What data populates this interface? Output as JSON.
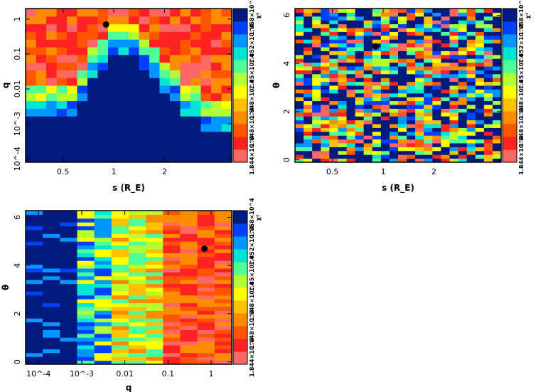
{
  "colormap": [
    "#ff6666",
    "#ff2222",
    "#ff5500",
    "#ff8c00",
    "#ffc000",
    "#ffff00",
    "#b4ff32",
    "#50ff96",
    "#00e6d2",
    "#0096ff",
    "#0040ff",
    "#001a80"
  ],
  "marker_color": "#000000",
  "chart_data": [
    {
      "type": "heatmap",
      "panel": "top-left",
      "xlabel": "s (R_E)",
      "ylabel": "q",
      "x_scale": "log",
      "y_scale": "log",
      "xlim": [
        0.3,
        5.0
      ],
      "ylim": [
        8e-05,
        2.0
      ],
      "x_ticks": [
        {
          "value": 0.5,
          "label": "0.5"
        },
        {
          "value": 1,
          "label": "1"
        },
        {
          "value": 2,
          "label": "2"
        }
      ],
      "y_ticks": [
        {
          "value": 1,
          "label": "1"
        },
        {
          "value": 0.1,
          "label": "0.1"
        },
        {
          "value": 0.01,
          "label": "0.01"
        },
        {
          "value": 0.001,
          "label": "10^-3"
        },
        {
          "value": 0.0001,
          "label": "10^-4"
        }
      ],
      "best_fit": {
        "x": 0.9,
        "y": 0.7
      },
      "colorbar_labels": [
        "1.844×10^4",
        "1.848×10^4",
        "1.848×10^4",
        "1.85×10^4",
        "1.852×10^4",
        "1.858×10^4"
      ],
      "colorbar_title": "χ²",
      "grid": {
        "cols": 20,
        "rows": 20,
        "column_bottom_row": [
          6,
          6,
          6,
          6,
          6,
          8,
          11,
          12,
          14,
          14,
          14,
          12,
          11,
          9,
          8,
          6,
          6,
          4,
          4,
          4
        ],
        "pattern": "v-shaped low-chi2 region at high q, high chi2 (dark blue) at low q"
      }
    },
    {
      "type": "heatmap",
      "panel": "top-right",
      "xlabel": "s (R_E)",
      "ylabel": "θ",
      "x_scale": "log",
      "y_scale": "linear",
      "xlim": [
        0.3,
        5.0
      ],
      "ylim": [
        -0.1,
        6.28
      ],
      "x_ticks": [
        {
          "value": 0.5,
          "label": "0.5"
        },
        {
          "value": 1,
          "label": "1"
        },
        {
          "value": 2,
          "label": "2"
        }
      ],
      "y_ticks": [
        {
          "value": 0,
          "label": "0"
        },
        {
          "value": 2,
          "label": "2"
        },
        {
          "value": 4,
          "label": "4"
        },
        {
          "value": 6,
          "label": "6"
        }
      ],
      "best_fit": {
        "x": 0.9,
        "y": 4.7
      },
      "colorbar_labels": [
        "1.844×10^4",
        "1.848×10^4",
        "1.848×10^4",
        "1.85×10^4",
        "1.852×10^4",
        "1.858×10^4"
      ],
      "colorbar_title": "χ²",
      "grid": {
        "cols": 24,
        "rows": 40,
        "pattern": "mixed noisy chi2 across all theta"
      }
    },
    {
      "type": "heatmap",
      "panel": "bottom-left",
      "xlabel": "q",
      "ylabel": "θ",
      "x_scale": "log",
      "y_scale": "linear",
      "xlim": [
        5e-05,
        3.0
      ],
      "ylim": [
        -0.1,
        6.28
      ],
      "x_ticks": [
        {
          "value": 0.0001,
          "label": "10^-4"
        },
        {
          "value": 0.001,
          "label": "10^-3"
        },
        {
          "value": 0.01,
          "label": "0.01"
        },
        {
          "value": 0.1,
          "label": "0.1"
        },
        {
          "value": 1,
          "label": "1"
        }
      ],
      "y_ticks": [
        {
          "value": 0,
          "label": "0"
        },
        {
          "value": 2,
          "label": "2"
        },
        {
          "value": 4,
          "label": "4"
        },
        {
          "value": 6,
          "label": "6"
        }
      ],
      "best_fit": {
        "x": 0.7,
        "y": 4.7
      },
      "colorbar_labels": [
        "1.844×10^4",
        "1.848×10^4",
        "1.848×10^4",
        "1.85×10^4",
        "1.852×10^4",
        "1.858×10^4"
      ],
      "colorbar_title": "χ²",
      "grid": {
        "cols": 12,
        "rows": 40,
        "pattern": "high chi2 at low q, low chi2 (red) at high q"
      }
    }
  ]
}
